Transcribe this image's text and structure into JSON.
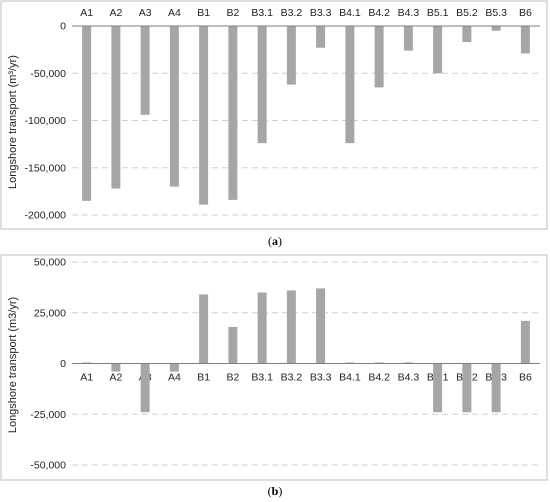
{
  "chart_data": [
    {
      "type": "bar",
      "panel_label": "a",
      "categories": [
        "A1",
        "A2",
        "A3",
        "A4",
        "B1",
        "B2",
        "B3.1",
        "B3.2",
        "B3.3",
        "B4.1",
        "B4.2",
        "B4.3",
        "B5.1",
        "B5.2",
        "B5.3",
        "B6"
      ],
      "values": [
        -185000,
        -172000,
        -94000,
        -170000,
        -189000,
        -184000,
        -124000,
        -62000,
        -23000,
        -124000,
        -65000,
        -26000,
        -50000,
        -17000,
        -5000,
        -29000
      ],
      "ylabel": "Longshore transport (m³/yr)",
      "ylim": [
        -200000,
        0
      ],
      "yticks": [
        0,
        -50000,
        -100000,
        -150000,
        -200000
      ],
      "ytick_labels": [
        "0",
        "-50,000",
        "-100,000",
        "-150,000",
        "-200,000"
      ],
      "category_labels_position": "top",
      "grid": "horizontal-dashed",
      "bar_color": "#a6a6a6"
    },
    {
      "type": "bar",
      "panel_label": "b",
      "categories": [
        "A1",
        "A2",
        "A3",
        "A4",
        "B1",
        "B2",
        "B3.1",
        "B3.2",
        "B3.3",
        "B4.1",
        "B4.2",
        "B4.3",
        "B5.1",
        "B5.2",
        "B5.3",
        "B6"
      ],
      "values": [
        500,
        -4000,
        -24000,
        -4000,
        34000,
        18000,
        35000,
        36000,
        37000,
        500,
        500,
        500,
        -24000,
        -24000,
        -24000,
        21000
      ],
      "ylabel": "Longshore transport (m3/yr)",
      "ylim": [
        -50000,
        50000
      ],
      "yticks": [
        50000,
        25000,
        0,
        -25000,
        -50000
      ],
      "ytick_labels": [
        "50,000",
        "25,000",
        "0",
        "-25,000",
        "-50,000"
      ],
      "category_labels_position": "zero-line",
      "grid": "horizontal-dashed",
      "bar_color": "#a6a6a6"
    }
  ]
}
